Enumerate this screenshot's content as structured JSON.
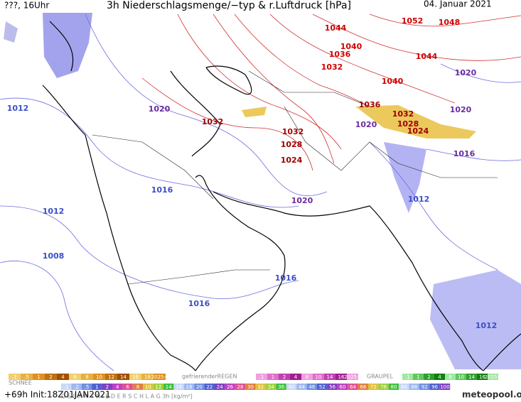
{
  "header": {
    "left": "???, 16Uhr",
    "title": "3h Niederschlagsmenge/−typ & r.Luftdruck [hPa]",
    "date": "04. Januar 2021"
  },
  "isobar_labels": [
    {
      "value": 1044,
      "color": "#d00000"
    },
    {
      "value": 1052,
      "color": "#d00000"
    },
    {
      "value": 1048,
      "color": "#d00000"
    },
    {
      "value": 1040,
      "color": "#d00000"
    },
    {
      "value": 1036,
      "color": "#d00000"
    },
    {
      "value": 1044,
      "color": "#d00000"
    },
    {
      "value": 1032,
      "color": "#d00000"
    },
    {
      "value": 1020,
      "color": "#6a2ca0"
    },
    {
      "value": 1040,
      "color": "#d00000"
    },
    {
      "value": 1012,
      "color": "#3a4fc8"
    },
    {
      "value": 1020,
      "color": "#6a2ca0"
    },
    {
      "value": 1036,
      "color": "#a00000"
    },
    {
      "value": 1032,
      "color": "#a00000"
    },
    {
      "value": 1020,
      "color": "#6a2ca0"
    },
    {
      "value": 1028,
      "color": "#a00000"
    },
    {
      "value": 1024,
      "color": "#a00000"
    },
    {
      "value": 1020,
      "color": "#6a2ca0"
    },
    {
      "value": 1032,
      "color": "#a00000"
    },
    {
      "value": 1032,
      "color": "#a00000"
    },
    {
      "value": 1028,
      "color": "#a00000"
    },
    {
      "value": 1024,
      "color": "#a00000"
    },
    {
      "value": 1016,
      "color": "#6a2ca0"
    },
    {
      "value": 1016,
      "color": "#3a4fc8"
    },
    {
      "value": 1012,
      "color": "#3a4fc8"
    },
    {
      "value": 1020,
      "color": "#6a2ca0"
    },
    {
      "value": 1012,
      "color": "#3a4fc8"
    },
    {
      "value": 1008,
      "color": "#3a4fc8"
    },
    {
      "value": 1016,
      "color": "#3a4fc8"
    },
    {
      "value": 1016,
      "color": "#3a4fc8"
    },
    {
      "value": 1012,
      "color": "#3a4fc8"
    }
  ],
  "legend": {
    "snow": {
      "title": "SCHNEE",
      "labels": [
        ".1",
        ".5",
        "1",
        "2",
        "4",
        "6",
        "8",
        "10",
        "12",
        "14",
        "16",
        "18",
        "2025+"
      ]
    },
    "freezing_rain": {
      "title": "gefrierenderREGEN",
      "labels": [
        ".1",
        "1",
        "2",
        "4",
        "8",
        "10",
        "14",
        "16",
        "2025+"
      ]
    },
    "graupel": {
      "title": "GRAUPEL",
      "labels": [
        ".1",
        "1",
        "2",
        "4",
        "8",
        "10",
        "14",
        "16",
        "2025+"
      ]
    },
    "total": {
      "title": "G E S A M T N I E D E R S C H L A G   3h   [kg/m²]",
      "labels": [
        ".1",
        ".2",
        ".5",
        "1",
        "2",
        "4",
        "6",
        "8",
        "10",
        "12",
        "14",
        "16",
        "18",
        "20",
        "22",
        "24",
        "26",
        "28",
        "30",
        "32",
        "34",
        "36",
        "40",
        "44",
        "48",
        "52",
        "56",
        "60",
        "64",
        "68",
        "72",
        "76",
        "80",
        "84",
        "88",
        "92",
        "96",
        "100"
      ]
    }
  },
  "footer": {
    "run": "+69h Init:18Z01JAN2021",
    "brand": "meteopool.org"
  }
}
